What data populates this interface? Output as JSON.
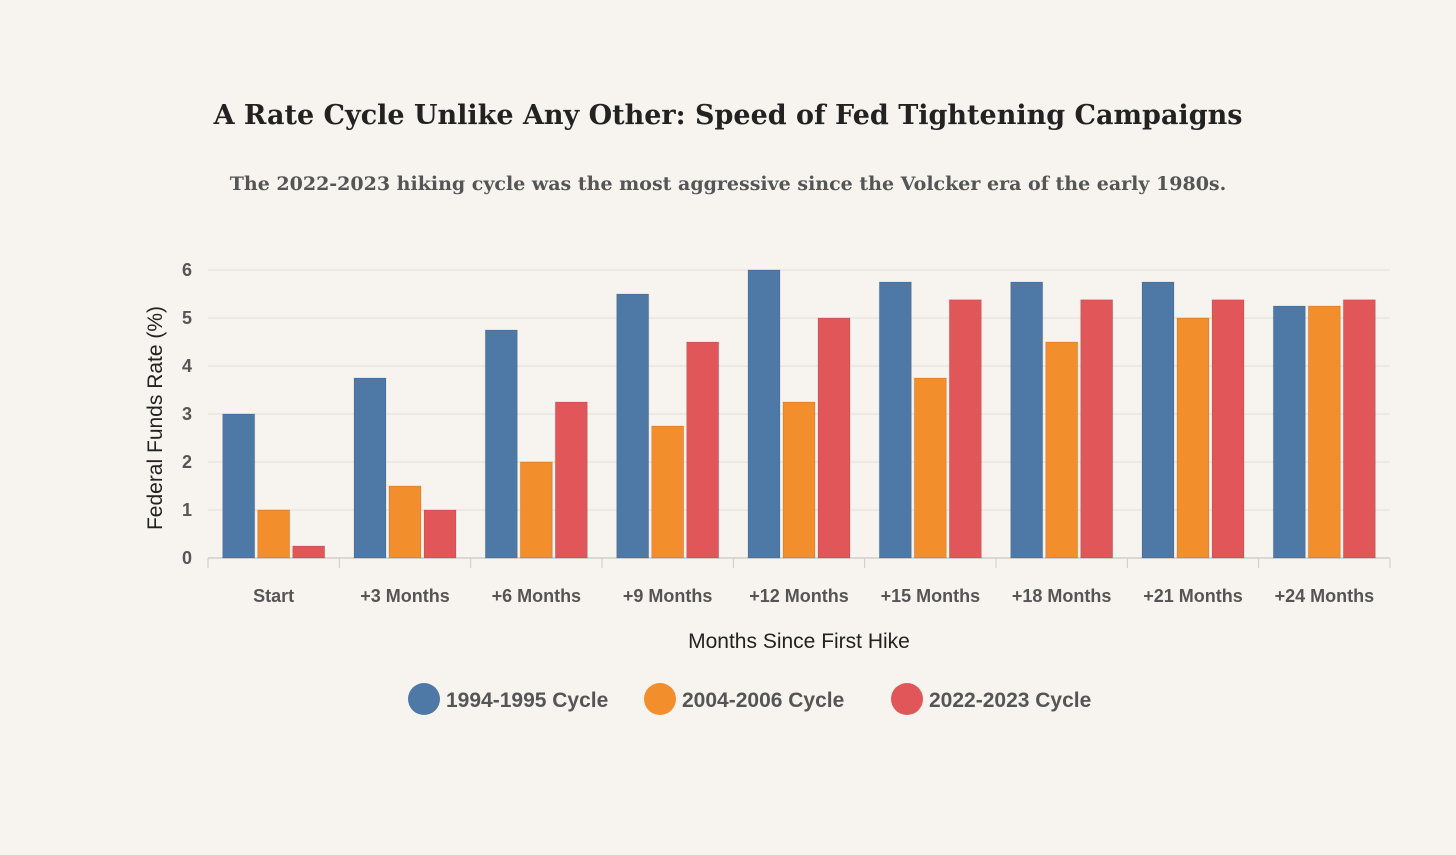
{
  "chart_data": {
    "type": "bar",
    "title": "A Rate Cycle Unlike Any Other: Speed of Fed Tightening Campaigns",
    "subtitle": "The 2022-2023 hiking cycle was the most aggressive since the Volcker era of the early 1980s.",
    "xlabel": "Months Since First Hike",
    "ylabel": "Federal Funds Rate (%)",
    "ylim": [
      0,
      6
    ],
    "yticks": [
      "0",
      "1",
      "2",
      "3",
      "4",
      "5",
      "6"
    ],
    "grid": true,
    "legend": "bottom",
    "categories": [
      "Start",
      "+3 Months",
      "+6 Months",
      "+9 Months",
      "+12 Months",
      "+15 Months",
      "+18 Months",
      "+21 Months",
      "+24 Months"
    ],
    "series": [
      {
        "name": "1994-1995 Cycle",
        "color": "#4e79a7",
        "values": [
          3,
          3.75,
          4.75,
          5.5,
          6,
          5.75,
          5.75,
          5.75,
          5.25
        ]
      },
      {
        "name": "2004-2006 Cycle",
        "color": "#f28e2b",
        "values": [
          1,
          1.5,
          2,
          2.75,
          3.25,
          3.75,
          4.5,
          5,
          5.25
        ]
      },
      {
        "name": "2022-2023 Cycle",
        "color": "#e15759",
        "values": [
          0.25,
          1,
          3.25,
          4.5,
          5,
          5.38,
          5.38,
          5.38,
          5.38
        ]
      }
    ]
  }
}
